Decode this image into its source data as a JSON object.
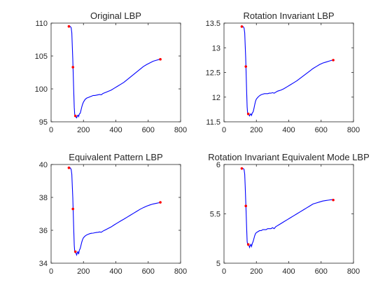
{
  "figure": {
    "background": "#ffffff"
  },
  "chart_data": [
    {
      "type": "line",
      "title": "Original LBP",
      "xlabel": "",
      "ylabel": "",
      "xlim": [
        0,
        800
      ],
      "ylim": [
        95,
        110
      ],
      "xticks": [
        "0",
        "200",
        "400",
        "600",
        "800"
      ],
      "yticks": [
        "95",
        "100",
        "105",
        "110"
      ],
      "line_color": "#0000ff",
      "marker_color": "#ff0000",
      "series": [
        {
          "x": [
            110,
            118,
            124,
            128,
            131,
            134,
            137,
            140,
            143,
            146,
            150,
            154,
            158,
            162,
            166,
            170,
            175,
            180,
            185,
            190,
            195,
            200,
            210,
            220,
            230,
            240,
            250,
            260,
            270,
            280,
            290,
            300,
            310,
            320,
            330,
            340,
            350,
            370,
            390,
            410,
            430,
            450,
            470,
            490,
            510,
            530,
            550,
            570,
            590,
            610,
            630,
            650,
            670,
            680
          ],
          "y": [
            109.5,
            109.5,
            109.3,
            108.5,
            106.5,
            104.5,
            102.0,
            99.5,
            97.2,
            96.1,
            95.9,
            95.7,
            95.6,
            95.9,
            96.0,
            95.8,
            96.2,
            96.3,
            96.8,
            97.3,
            97.7,
            98.0,
            98.4,
            98.6,
            98.7,
            98.8,
            98.9,
            99.0,
            99.0,
            99.05,
            99.1,
            99.15,
            99.1,
            99.3,
            99.4,
            99.5,
            99.6,
            99.8,
            100.1,
            100.4,
            100.7,
            101.0,
            101.4,
            101.8,
            102.2,
            102.6,
            103.0,
            103.4,
            103.7,
            103.95,
            104.2,
            104.35,
            104.5,
            104.5
          ]
        }
      ],
      "markers": [
        {
          "x": 110,
          "y": 109.5
        },
        {
          "x": 135,
          "y": 103.3
        },
        {
          "x": 150,
          "y": 95.9
        },
        {
          "x": 675,
          "y": 104.5
        }
      ]
    },
    {
      "type": "line",
      "title": "Rotation Invariant LBP",
      "xlabel": "",
      "ylabel": "",
      "xlim": [
        0,
        800
      ],
      "ylim": [
        11.5,
        13.5
      ],
      "xticks": [
        "0",
        "200",
        "400",
        "600",
        "800"
      ],
      "yticks": [
        "11.5",
        "12",
        "12.5",
        "13",
        "13.5"
      ],
      "line_color": "#0000ff",
      "marker_color": "#ff0000",
      "series": [
        {
          "x": [
            110,
            118,
            124,
            128,
            131,
            134,
            137,
            140,
            143,
            146,
            150,
            154,
            158,
            162,
            166,
            170,
            175,
            180,
            185,
            190,
            195,
            200,
            210,
            220,
            230,
            240,
            250,
            260,
            270,
            280,
            290,
            300,
            310,
            320,
            330,
            340,
            350,
            370,
            390,
            410,
            430,
            450,
            470,
            490,
            510,
            530,
            550,
            570,
            590,
            610,
            630,
            650,
            670,
            680
          ],
          "y": [
            13.43,
            13.43,
            13.4,
            13.3,
            13.05,
            12.8,
            12.45,
            12.1,
            11.8,
            11.67,
            11.66,
            11.64,
            11.62,
            11.65,
            11.66,
            11.63,
            11.68,
            11.7,
            11.77,
            11.85,
            11.92,
            11.96,
            12.0,
            12.03,
            12.05,
            12.06,
            12.07,
            12.07,
            12.07,
            12.08,
            12.08,
            12.09,
            12.08,
            12.1,
            12.12,
            12.13,
            12.14,
            12.17,
            12.21,
            12.25,
            12.29,
            12.33,
            12.38,
            12.43,
            12.48,
            12.53,
            12.58,
            12.62,
            12.66,
            12.69,
            12.71,
            12.73,
            12.75,
            12.75
          ]
        }
      ],
      "markers": [
        {
          "x": 110,
          "y": 13.43
        },
        {
          "x": 135,
          "y": 12.62
        },
        {
          "x": 150,
          "y": 11.66
        },
        {
          "x": 675,
          "y": 12.75
        }
      ]
    },
    {
      "type": "line",
      "title": "Equivalent Pattern LBP",
      "xlabel": "",
      "ylabel": "",
      "xlim": [
        0,
        800
      ],
      "ylim": [
        34,
        40
      ],
      "xticks": [
        "0",
        "200",
        "400",
        "600",
        "800"
      ],
      "yticks": [
        "34",
        "36",
        "38",
        "40"
      ],
      "line_color": "#0000ff",
      "marker_color": "#ff0000",
      "series": [
        {
          "x": [
            110,
            118,
            124,
            128,
            131,
            134,
            137,
            140,
            143,
            146,
            150,
            154,
            158,
            162,
            166,
            170,
            175,
            180,
            185,
            190,
            195,
            200,
            210,
            220,
            230,
            240,
            250,
            260,
            270,
            280,
            290,
            300,
            310,
            320,
            330,
            340,
            350,
            370,
            390,
            410,
            430,
            450,
            470,
            490,
            510,
            530,
            550,
            570,
            590,
            610,
            630,
            650,
            670,
            680
          ],
          "y": [
            39.8,
            39.8,
            39.7,
            39.4,
            38.7,
            38.0,
            37.0,
            36.0,
            35.1,
            34.7,
            34.7,
            34.6,
            34.5,
            34.65,
            34.7,
            34.55,
            34.8,
            34.9,
            35.1,
            35.3,
            35.45,
            35.55,
            35.65,
            35.72,
            35.76,
            35.8,
            35.82,
            35.83,
            35.85,
            35.87,
            35.88,
            35.9,
            35.88,
            35.95,
            36.0,
            36.05,
            36.1,
            36.2,
            36.33,
            36.45,
            36.57,
            36.68,
            36.8,
            36.92,
            37.04,
            37.16,
            37.28,
            37.38,
            37.47,
            37.54,
            37.6,
            37.64,
            37.68,
            37.7
          ]
        }
      ],
      "markers": [
        {
          "x": 110,
          "y": 39.8
        },
        {
          "x": 135,
          "y": 37.3
        },
        {
          "x": 150,
          "y": 34.7
        },
        {
          "x": 675,
          "y": 37.7
        }
      ]
    },
    {
      "type": "line",
      "title": "Rotation Invariant Equivalent Mode LBP",
      "xlabel": "",
      "ylabel": "",
      "xlim": [
        0,
        800
      ],
      "ylim": [
        5,
        6
      ],
      "xticks": [
        "0",
        "200",
        "400",
        "600",
        "800"
      ],
      "yticks": [
        "5",
        "5.5",
        "6"
      ],
      "line_color": "#0000ff",
      "marker_color": "#ff0000",
      "series": [
        {
          "x": [
            110,
            118,
            124,
            128,
            131,
            134,
            137,
            140,
            143,
            146,
            150,
            154,
            158,
            162,
            166,
            170,
            175,
            180,
            185,
            190,
            195,
            200,
            210,
            220,
            230,
            240,
            250,
            260,
            270,
            280,
            290,
            300,
            310,
            320,
            330,
            340,
            350,
            370,
            390,
            410,
            430,
            450,
            470,
            490,
            510,
            530,
            550,
            570,
            590,
            610,
            630,
            650,
            670,
            680
          ],
          "y": [
            5.96,
            5.96,
            5.95,
            5.9,
            5.78,
            5.64,
            5.5,
            5.35,
            5.22,
            5.19,
            5.19,
            5.18,
            5.16,
            5.18,
            5.19,
            5.17,
            5.2,
            5.22,
            5.25,
            5.28,
            5.3,
            5.31,
            5.32,
            5.33,
            5.33,
            5.34,
            5.34,
            5.34,
            5.35,
            5.35,
            5.35,
            5.36,
            5.35,
            5.37,
            5.38,
            5.39,
            5.4,
            5.42,
            5.44,
            5.46,
            5.48,
            5.5,
            5.52,
            5.54,
            5.56,
            5.58,
            5.6,
            5.61,
            5.62,
            5.63,
            5.635,
            5.64,
            5.645,
            5.645
          ]
        }
      ],
      "markers": [
        {
          "x": 110,
          "y": 5.96
        },
        {
          "x": 135,
          "y": 5.58
        },
        {
          "x": 150,
          "y": 5.19
        },
        {
          "x": 675,
          "y": 5.64
        }
      ]
    }
  ]
}
